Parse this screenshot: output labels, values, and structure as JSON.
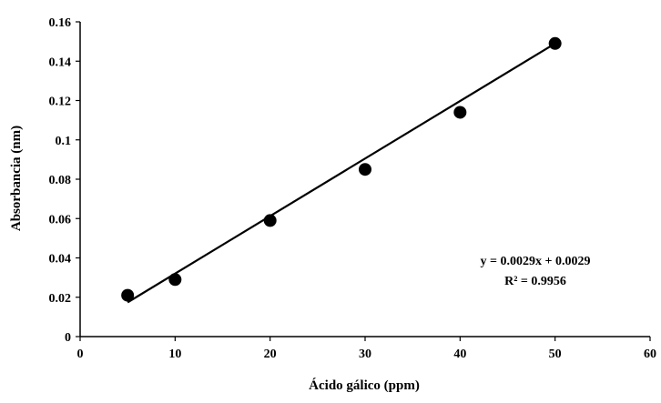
{
  "chart_data": {
    "type": "scatter",
    "title": "",
    "xlabel": "Ácido gálico (ppm)",
    "ylabel": "Absorbancia (nm)",
    "xlim": [
      0,
      60
    ],
    "ylim": [
      0,
      0.16
    ],
    "x_ticks": [
      0,
      10,
      20,
      30,
      40,
      50,
      60
    ],
    "y_ticks": [
      0,
      0.02,
      0.04,
      0.06,
      0.08,
      0.1,
      0.12,
      0.14,
      0.16
    ],
    "x_tick_labels": [
      "0",
      "10",
      "20",
      "30",
      "40",
      "50",
      "60"
    ],
    "y_tick_labels": [
      "0",
      "0.02",
      "0.04",
      "0.06",
      "0.08",
      "0.1",
      "0.12",
      "0.14",
      "0.16"
    ],
    "grid": false,
    "legend": "none",
    "series": [
      {
        "x": [
          5,
          10,
          20,
          30,
          40,
          50
        ],
        "y": [
          0.021,
          0.029,
          0.059,
          0.085,
          0.114,
          0.149
        ],
        "marker": "circle",
        "color": "#000000"
      }
    ],
    "trendline": {
      "x_range": [
        5,
        50
      ],
      "y_range": [
        0.0174,
        0.149
      ],
      "color": "#000000"
    },
    "annotations": {
      "equation": "y = 0.0029x + 0.0029",
      "r_squared": "R² = 0.9956"
    }
  }
}
